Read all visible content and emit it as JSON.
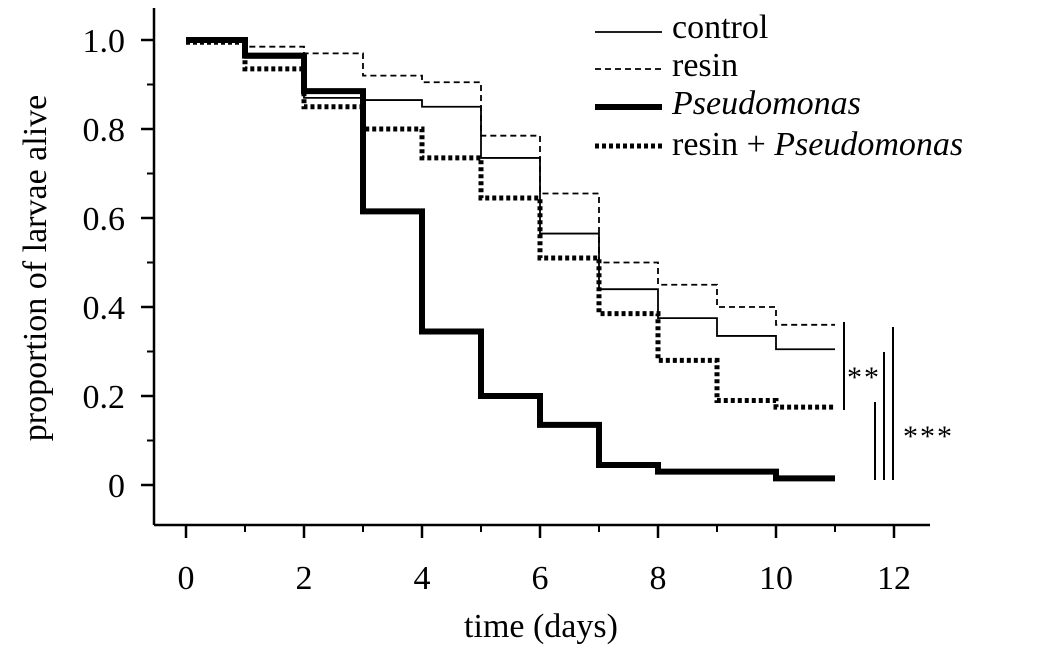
{
  "chart_data": {
    "type": "line",
    "step": true,
    "xlabel": "time (days)",
    "ylabel": "proportion of larvae alive",
    "xlim": [
      -0.5,
      12.7
    ],
    "ylim": [
      -0.09,
      1.08
    ],
    "xticks": [
      0,
      2,
      4,
      6,
      8,
      10,
      12
    ],
    "xtick_labels": [
      "0",
      "2",
      "4",
      "6",
      "8",
      "10",
      "12"
    ],
    "xminor": [
      1,
      3,
      5,
      7,
      9,
      11
    ],
    "yticks": [
      0,
      0.2,
      0.4,
      0.6,
      0.8,
      1.0
    ],
    "ytick_labels": [
      "0",
      "0.2",
      "0.4",
      "0.6",
      "0.8",
      "1.0"
    ],
    "yminor": [
      0.1,
      0.3,
      0.5,
      0.7,
      0.9
    ],
    "grid": false,
    "legend_position": "top-right",
    "series": [
      {
        "name": "control",
        "style": "thin-solid",
        "x": [
          0,
          1,
          2,
          3,
          4,
          5,
          6,
          7,
          8,
          9,
          10,
          11
        ],
        "y": [
          1.0,
          0.96,
          0.87,
          0.865,
          0.85,
          0.735,
          0.565,
          0.44,
          0.375,
          0.335,
          0.305,
          0.305
        ]
      },
      {
        "name": "resin",
        "style": "thin-dashed",
        "x": [
          0,
          1,
          2,
          3,
          4,
          5,
          6,
          7,
          8,
          9,
          10,
          11
        ],
        "y": [
          1.0,
          0.985,
          0.97,
          0.92,
          0.905,
          0.785,
          0.655,
          0.5,
          0.45,
          0.4,
          0.36,
          0.36
        ]
      },
      {
        "name": "Pseudomonas",
        "style": "thick-solid",
        "x": [
          0,
          1,
          2,
          3,
          4,
          5,
          6,
          7,
          8,
          9,
          10,
          11
        ],
        "y": [
          1.0,
          0.965,
          0.885,
          0.615,
          0.345,
          0.2,
          0.135,
          0.045,
          0.03,
          0.03,
          0.015,
          0.015
        ]
      },
      {
        "name": "resin + Pseudomonas",
        "style": "thick-dotted",
        "x": [
          0,
          1,
          2,
          3,
          4,
          5,
          6,
          7,
          8,
          9,
          10,
          11
        ],
        "y": [
          0.995,
          0.935,
          0.85,
          0.8,
          0.735,
          0.645,
          0.51,
          0.385,
          0.28,
          0.19,
          0.175,
          0.175
        ]
      }
    ],
    "legend": [
      {
        "prefix": "control",
        "italic": ""
      },
      {
        "prefix": "resin",
        "italic": ""
      },
      {
        "prefix": "",
        "italic": "Pseudomonas"
      },
      {
        "prefix": "resin + ",
        "italic": "Pseudomonas"
      }
    ],
    "significance": [
      {
        "label": "**"
      },
      {
        "label": "***"
      }
    ]
  }
}
